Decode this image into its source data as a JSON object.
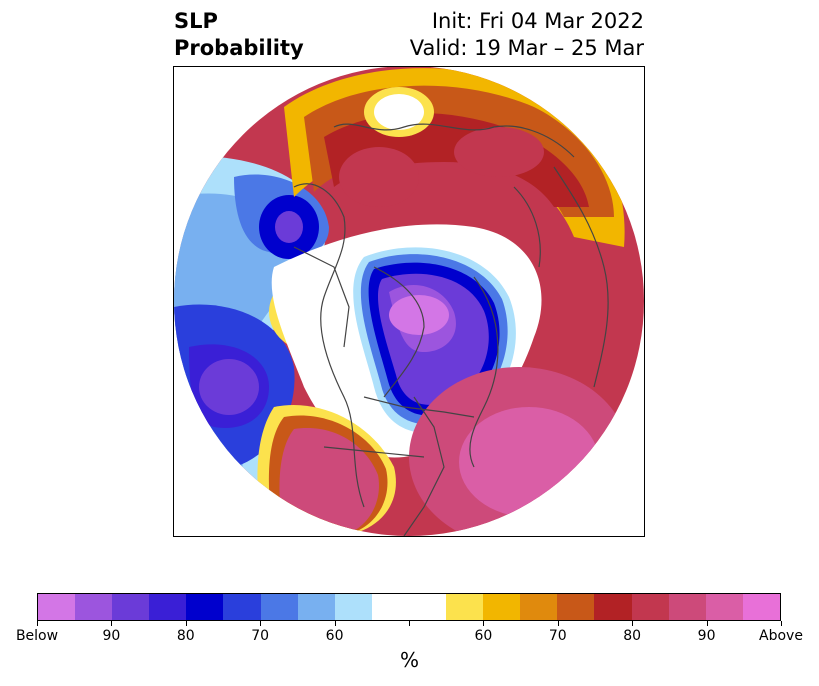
{
  "title": {
    "left_line1": "SLP",
    "left_line2": "Probability",
    "right_line1": "Init: Fri 04 Mar 2022",
    "right_line2": "Valid: 19 Mar – 25 Mar"
  },
  "map": {
    "projection": "north-polar-stereographic",
    "coastline_color": "#444444",
    "anomalies": [
      {
        "region": "Arctic / north of Canada and Greenland",
        "category": "below",
        "peak_percent": 100
      },
      {
        "region": "Gulf of Alaska / NE Pacific",
        "category": "below",
        "peak_percent": 100
      },
      {
        "region": "North Pacific near Kamchatka",
        "category": "below",
        "peak_percent": 85
      },
      {
        "region": "North Atlantic",
        "category": "above",
        "peak_percent": 100
      },
      {
        "region": "Eastern United States",
        "category": "above",
        "peak_percent": 90
      },
      {
        "region": "Siberia / northern Eurasia",
        "category": "above",
        "peak_percent": 85
      },
      {
        "region": "Western North America coast",
        "category": "above",
        "peak_percent": 80
      }
    ]
  },
  "colorbar": {
    "colors": [
      "#d376e6",
      "#9c55de",
      "#6b3bd8",
      "#3a1fd6",
      "#0000cd",
      "#2a3fdc",
      "#4b78e6",
      "#78b0f0",
      "#ade0fb",
      "#ffffff",
      "#ffffff",
      "#fce24d",
      "#f2b600",
      "#e08a0d",
      "#c85818",
      "#b22225",
      "#c2374f",
      "#cd4a7a",
      "#da5ea6",
      "#e870d8"
    ],
    "tick_labels": [
      "Below",
      "90",
      "80",
      "70",
      "60",
      "",
      "60",
      "70",
      "80",
      "90",
      "Above"
    ],
    "unit_label": "%"
  }
}
